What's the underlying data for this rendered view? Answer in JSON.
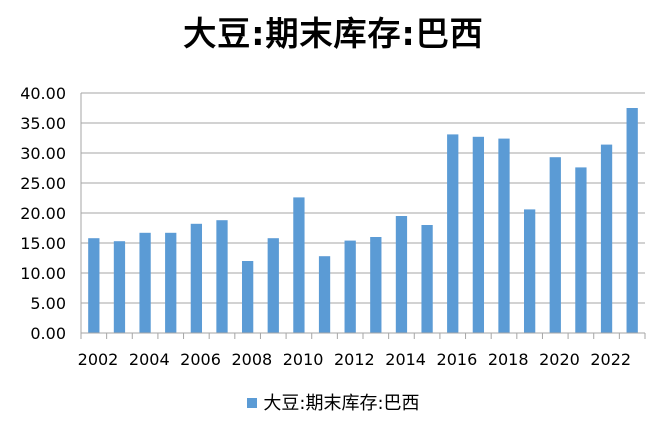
{
  "chart_data": {
    "type": "bar",
    "title": "大豆:期末库存:巴西",
    "xlabel": "",
    "ylabel": "",
    "ylim": [
      0,
      40
    ],
    "yticks": [
      "0.00",
      "5.00",
      "10.00",
      "15.00",
      "20.00",
      "25.00",
      "30.00",
      "35.00",
      "40.00"
    ],
    "xtick_labels": [
      "2002",
      "2004",
      "2006",
      "2008",
      "2010",
      "2012",
      "2014",
      "2016",
      "2018",
      "2020",
      "2022"
    ],
    "categories": [
      "2002",
      "2003",
      "2004",
      "2005",
      "2006",
      "2007",
      "2008",
      "2009",
      "2010",
      "2011",
      "2012",
      "2013",
      "2014",
      "2015",
      "2016",
      "2017",
      "2018",
      "2019",
      "2020",
      "2021",
      "2022",
      "2023"
    ],
    "series": [
      {
        "name": "大豆:期末库存:巴西",
        "color": "#5b9bd5",
        "values": [
          15.8,
          15.3,
          16.7,
          16.7,
          18.2,
          18.8,
          12.0,
          15.8,
          22.6,
          12.8,
          15.4,
          16.0,
          19.5,
          18.0,
          33.1,
          32.7,
          32.4,
          20.6,
          29.3,
          27.6,
          31.4,
          37.5
        ]
      }
    ],
    "legend_position": "bottom",
    "grid": true
  }
}
